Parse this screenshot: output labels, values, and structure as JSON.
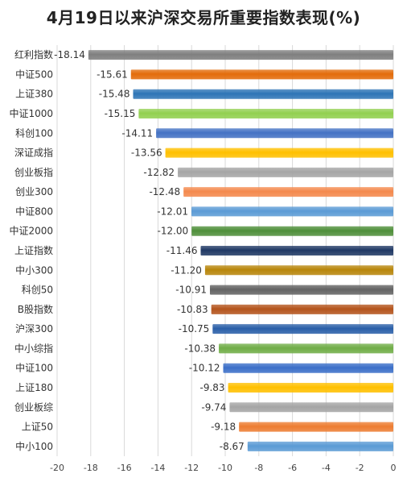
{
  "chart_data": {
    "type": "bar",
    "orientation": "horizontal",
    "title": "4月19日以来沪深交易所重要指数表现(%)",
    "categories": [
      "红利指数",
      "中证500",
      "上证380",
      "中证1000",
      "科创100",
      "深证成指",
      "创业板指",
      "创业300",
      "中证800",
      "中证2000",
      "上证指数",
      "中小300",
      "科创50",
      "B股指数",
      "沪深300",
      "中小综指",
      "中证100",
      "上证180",
      "创业板综",
      "上证50",
      "中小100"
    ],
    "values": [
      -18.14,
      -15.61,
      -15.48,
      -15.15,
      -14.11,
      -13.56,
      -12.82,
      -12.48,
      -12.01,
      -12.0,
      -11.46,
      -11.2,
      -10.91,
      -10.83,
      -10.75,
      -10.38,
      -10.12,
      -9.83,
      -9.74,
      -9.18,
      -8.67
    ],
    "value_labels": [
      "-18.14",
      "-15.61",
      "-15.48",
      "-15.15",
      "-14.11",
      "-13.56",
      "-12.82",
      "-12.48",
      "-12.01",
      "-12.00",
      "-11.46",
      "-11.20",
      "-10.91",
      "-10.83",
      "-10.75",
      "-10.38",
      "-10.12",
      "-9.83",
      "-9.74",
      "-9.18",
      "-8.67"
    ],
    "colors": [
      "#7f7f7f",
      "#e36c0a",
      "#2e75b6",
      "#92d050",
      "#4472c4",
      "#ffc000",
      "#a5a5a5",
      "#f4894d",
      "#5b9bd5",
      "#4f8f3a",
      "#1f3864",
      "#b8860b",
      "#636363",
      "#b4541c",
      "#2a5fa8",
      "#70ad47",
      "#3b6fc8",
      "#ffc000",
      "#a5a5a5",
      "#ed7d31",
      "#5b9bd5"
    ],
    "xlim": [
      -20,
      0
    ],
    "xticks": [
      -20,
      -18,
      -16,
      -14,
      -12,
      -10,
      -8,
      -6,
      -4,
      -2,
      0
    ],
    "xtick_labels": [
      "-20",
      "-18",
      "-16",
      "-14",
      "-12",
      "-10",
      "-8",
      "-6",
      "-4",
      "-2",
      "0"
    ],
    "grid": "vertical",
    "legend": "none"
  }
}
